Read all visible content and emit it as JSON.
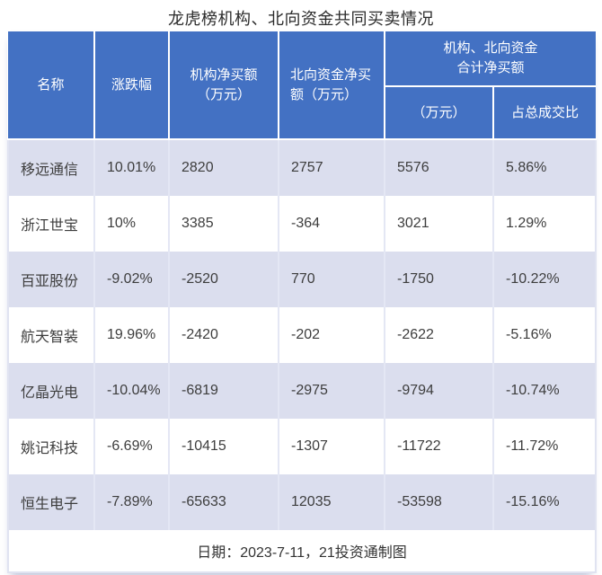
{
  "title": "龙虎榜机构、北向资金共同买卖情况",
  "header": {
    "name": "名称",
    "change": "涨跌幅",
    "inst_net_buy": "机构净买额\n（万元）",
    "north_net_buy": "北向资金净买\n额（万元）",
    "combined_group": "机构、北向资金\n合计净买额",
    "combined_amount": "（万元）",
    "combined_pct": "占总成交比"
  },
  "footer_note": "日期：2023-7-11，21投资通制图",
  "colors": {
    "header_blue": "#4371C3",
    "band_lavender": "#DBDEEE",
    "divider_line": "#E4E7F4",
    "text_dark": "#3D3D3D"
  },
  "chart_data": {
    "type": "table",
    "title": "龙虎榜机构、北向资金共同买卖情况",
    "columns": [
      "名称",
      "涨跌幅",
      "机构净买额（万元）",
      "北向资金净买额（万元）",
      "机构、北向资金合计净买额（万元）",
      "机构、北向资金合计净买额占总成交比"
    ],
    "rows": [
      [
        "移远通信",
        "10.01%",
        "2820",
        "2757",
        "5576",
        "5.86%"
      ],
      [
        "浙江世宝",
        "10%",
        "3385",
        "-364",
        "3021",
        "1.29%"
      ],
      [
        "百亚股份",
        "-9.02%",
        "-2520",
        "770",
        "-1750",
        "-10.22%"
      ],
      [
        "航天智装",
        "19.96%",
        "-2420",
        "-202",
        "-2622",
        "-5.16%"
      ],
      [
        "亿晶光电",
        "-10.04%",
        "-6819",
        "-2975",
        "-9794",
        "-10.74%"
      ],
      [
        "姚记科技",
        "-6.69%",
        "-10415",
        "-1307",
        "-11722",
        "-11.72%"
      ],
      [
        "恒生电子",
        "-7.89%",
        "-65633",
        "12035",
        "-53598",
        "-15.16%"
      ]
    ],
    "date": "2023-7-11",
    "note": "日期：2023-7-11，21投资通制图",
    "legend_position": "none",
    "grid": false
  }
}
